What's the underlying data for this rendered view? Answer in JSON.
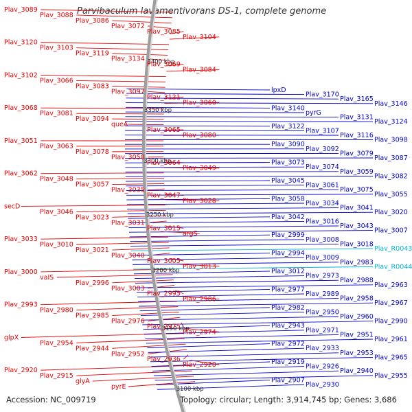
{
  "title": "Parvibaculum lavamentivorans DS-1, complete genome",
  "accession": {
    "label": "Accession:",
    "value": "NC_009719"
  },
  "summary": {
    "topology_label": "Topology:",
    "topology": "circular",
    "length_label": "Length:",
    "length": "3,914,745 bp",
    "genes_label": "Genes:",
    "genes": "3,686"
  },
  "colors": {
    "left_labels": "#e60000",
    "right_labels": "#0000cc",
    "highlight_labels": "#00b4d8",
    "backbone": "#999999"
  },
  "kbp_ticks": [
    "3100 kbp",
    "3150 kbp",
    "3200 kbp",
    "3250 kbp",
    "3300 kbp",
    "3350 kbp",
    "3400 kbp"
  ],
  "left_labels": [
    "Plav_3089",
    "Plav_3088",
    "Plav_3086",
    "Plav_3072",
    "Plav_3085",
    "Plav_3104",
    "Plav_3120",
    "Plav_3103",
    "Plav_3119",
    "Plav_3134",
    "Plav_3069",
    "Plav_3084",
    "Plav_3102",
    "Plav_3066",
    "Plav_3083",
    "Plav_3097",
    "Plav_3121",
    "Plav_3060",
    "Plav_3068",
    "Plav_3081",
    "Plav_3094",
    "queA",
    "Plav_3065",
    "Plav_3080",
    "Plav_3051",
    "Plav_3063",
    "Plav_3078",
    "Plav_3050",
    "Plav_3064",
    "Plav_3049",
    "Plav_3062",
    "Plav_3048",
    "Plav_3057",
    "Plav_3035",
    "Plav_3047",
    "Plav_3028",
    "secD",
    "Plav_3046",
    "Plav_3023",
    "Plav_3031",
    "Plav_3015",
    "argS",
    "Plav_3033",
    "Plav_3010",
    "Plav_3021",
    "Plav_3040",
    "Plav_3005",
    "Plav_3013",
    "Plav_3000",
    "valS",
    "Plav_2996",
    "Plav_3003",
    "Plav_2995",
    "Plav_2986",
    "Plav_2993",
    "Plav_2980",
    "Plav_2985",
    "Plav_2976",
    "Plav_2975",
    "Plav_2974",
    "glpX",
    "Plav_2954",
    "Plav_2944",
    "Plav_2952",
    "Plav_2936",
    "Plav_2928",
    "Plav_2920",
    "Plav_2915",
    "glyA",
    "pyrE"
  ],
  "right_labels": [
    "lpxD",
    "Plav_3170",
    "Plav_3165",
    "Plav_3146",
    "Plav_3140",
    "pyrG",
    "Plav_3131",
    "Plav_3124",
    "Plav_3122",
    "Plav_3107",
    "Plav_3116",
    "Plav_3098",
    "Plav_3090",
    "Plav_3092",
    "Plav_3079",
    "Plav_3087",
    "Plav_3073",
    "Plav_3074",
    "Plav_3059",
    "Plav_3082",
    "Plav_3045",
    "Plav_3061",
    "Plav_3075",
    "Plav_3055",
    "Plav_3058",
    "Plav_3034",
    "Plav_3041",
    "Plav_3020",
    "Plav_3042",
    "Plav_3016",
    "Plav_3043",
    "Plav_3007",
    "Plav_2999",
    "Plav_3008",
    "Plav_3018",
    "Plav_R0043",
    "Plav_2994",
    "Plav_3009",
    "Plav_2983",
    "Plav_R0044",
    "Plav_3012",
    "Plav_2973",
    "Plav_2988",
    "Plav_2963",
    "Plav_2977",
    "Plav_2989",
    "Plav_2958",
    "Plav_2967",
    "Plav_2982",
    "Plav_2950",
    "Plav_2960",
    "Plav_2990",
    "Plav_2943",
    "Plav_2971",
    "Plav_2951",
    "Plav_2961",
    "Plav_2972",
    "Plav_2933",
    "Plav_2953",
    "Plav_2965",
    "Plav_2919",
    "Plav_2926",
    "Plav_2940",
    "Plav_2955",
    "Plav_2907",
    "Plav_2930"
  ],
  "highlight_labels": [
    "Plav_R0043",
    "Plav_R0044"
  ]
}
